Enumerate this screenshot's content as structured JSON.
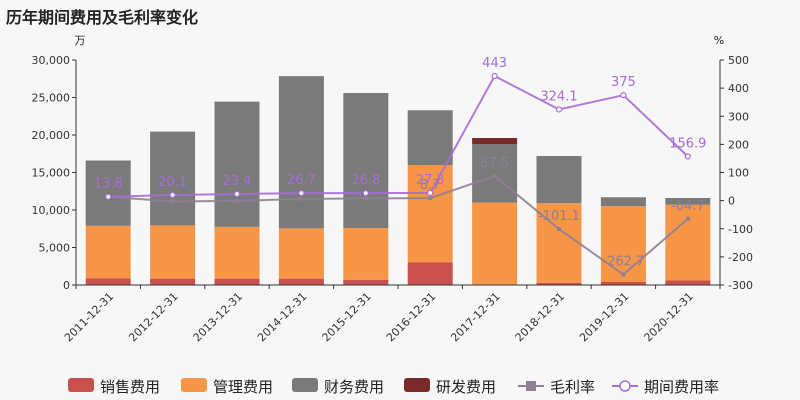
{
  "title": "历年期间费用及毛利率变化",
  "chart_data": {
    "type": "bar",
    "categories": [
      "2011-12-31",
      "2012-12-31",
      "2013-12-31",
      "2014-12-31",
      "2015-12-31",
      "2016-12-31",
      "2017-12-31",
      "2018-12-31",
      "2019-12-31",
      "2020-12-31"
    ],
    "left_axis": {
      "unit": "万",
      "ylim": [
        0,
        30000
      ],
      "ticks": [
        "0",
        "5,000",
        "10,000",
        "15,000",
        "20,000",
        "25,000",
        "30,000"
      ]
    },
    "right_axis": {
      "unit": "%",
      "ylim": [
        -300,
        500
      ],
      "ticks": [
        "-300",
        "-200",
        "-100",
        "0",
        "100",
        "200",
        "300",
        "400",
        "500"
      ]
    },
    "bar_series": [
      {
        "name": "销售费用",
        "color": "#c9504f",
        "values": [
          900,
          850,
          850,
          850,
          700,
          3000,
          100,
          300,
          400,
          600
        ]
      },
      {
        "name": "管理费用",
        "color": "#f79646",
        "values": [
          7000,
          7100,
          6900,
          6700,
          6900,
          13000,
          10900,
          10600,
          10100,
          10100
        ]
      },
      {
        "name": "财务费用",
        "color": "#7a7a7a",
        "values": [
          8700,
          12500,
          16700,
          20300,
          18000,
          7300,
          7800,
          6300,
          1200,
          900
        ]
      },
      {
        "name": "研发费用",
        "color": "#7b2a2a",
        "values": [
          0,
          0,
          0,
          0,
          0,
          0,
          800,
          0,
          0,
          0
        ]
      }
    ],
    "line_series": [
      {
        "name": "毛利率",
        "color": "#8e7e96",
        "values": [
          13.8,
          -3,
          -1,
          6,
          8,
          8.7,
          87.5,
          -101.1,
          -262.7,
          -64.7
        ],
        "labels": [
          "",
          "",
          "",
          "",
          "",
          "8.7",
          "87.5",
          "-101.1",
          "-262.7",
          "-64.7"
        ]
      },
      {
        "name": "期间费用率",
        "color": "#a86cd6",
        "values": [
          13.8,
          20.1,
          23.4,
          26.7,
          26.8,
          27.3,
          443,
          324.1,
          375,
          156.9
        ],
        "labels": [
          "13.8",
          "20.1",
          "23.4",
          "26.7",
          "26.8",
          "27.3",
          "443",
          "324.1",
          "375",
          "156.9"
        ]
      }
    ],
    "legend_position": "bottom"
  }
}
